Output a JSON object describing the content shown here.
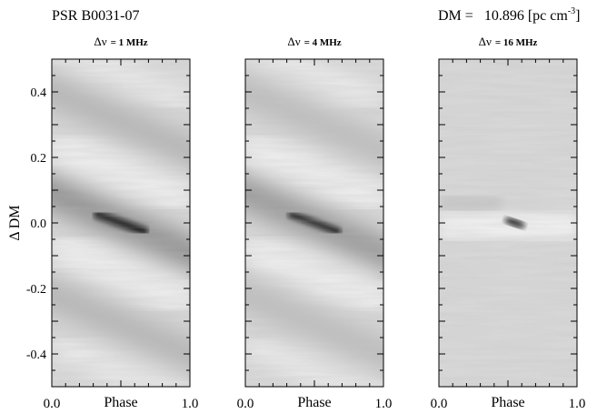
{
  "header": {
    "pulsar": "PSR B0031-07",
    "dm_label": "DM =",
    "dm_value": "10.896",
    "dm_unit_prefix": "[pc cm",
    "dm_unit_exp": "-3",
    "dm_unit_suffix": "]"
  },
  "chart_data": [
    {
      "type": "heatmap",
      "title_symbol": "Δν",
      "title_value": "= 1 MHz",
      "xlabel": "Phase",
      "ylabel": "Δ DM",
      "xlim": [
        0.0,
        1.0
      ],
      "ylim": [
        -0.5,
        0.5
      ],
      "xticklabels": [
        "0.0",
        "1.0"
      ],
      "yticks": [
        0.4,
        0.2,
        0.0,
        -0.2,
        -0.4
      ],
      "yticklabels": [
        "0.4",
        "0.2",
        "0.0",
        "-0.2",
        "-0.4"
      ],
      "peak": {
        "phase": 0.5,
        "ddm": 0.0
      },
      "band_slope": -0.18,
      "bands": [
        {
          "ddm_offset": 0.0,
          "level": 0.62
        },
        {
          "ddm_offset": 0.31,
          "level": 0.28
        },
        {
          "ddm_offset": -0.31,
          "level": 0.28
        }
      ],
      "colorscale": "gray-reversed"
    },
    {
      "type": "heatmap",
      "title_symbol": "Δν",
      "title_value": "= 4 MHz",
      "xlabel": "Phase",
      "xlim": [
        0.0,
        1.0
      ],
      "ylim": [
        -0.5,
        0.5
      ],
      "xticklabels": [
        "0.0",
        "1.0"
      ],
      "peak": {
        "phase": 0.5,
        "ddm": 0.0
      },
      "band_slope": -0.18,
      "bands": [
        {
          "ddm_offset": 0.0,
          "level": 0.55
        },
        {
          "ddm_offset": 0.31,
          "level": 0.22
        },
        {
          "ddm_offset": -0.31,
          "level": 0.22
        }
      ],
      "colorscale": "gray-reversed"
    },
    {
      "type": "heatmap",
      "title_symbol": "Δν",
      "title_value": "= 16 MHz",
      "xlabel": "Phase",
      "xlim": [
        0.0,
        1.0
      ],
      "ylim": [
        -0.5,
        0.5
      ],
      "xticklabels": [
        "0.0",
        "1.0"
      ],
      "peak": {
        "phase": 0.55,
        "ddm": 0.0
      },
      "bands": [],
      "colorscale": "gray-reversed"
    }
  ]
}
